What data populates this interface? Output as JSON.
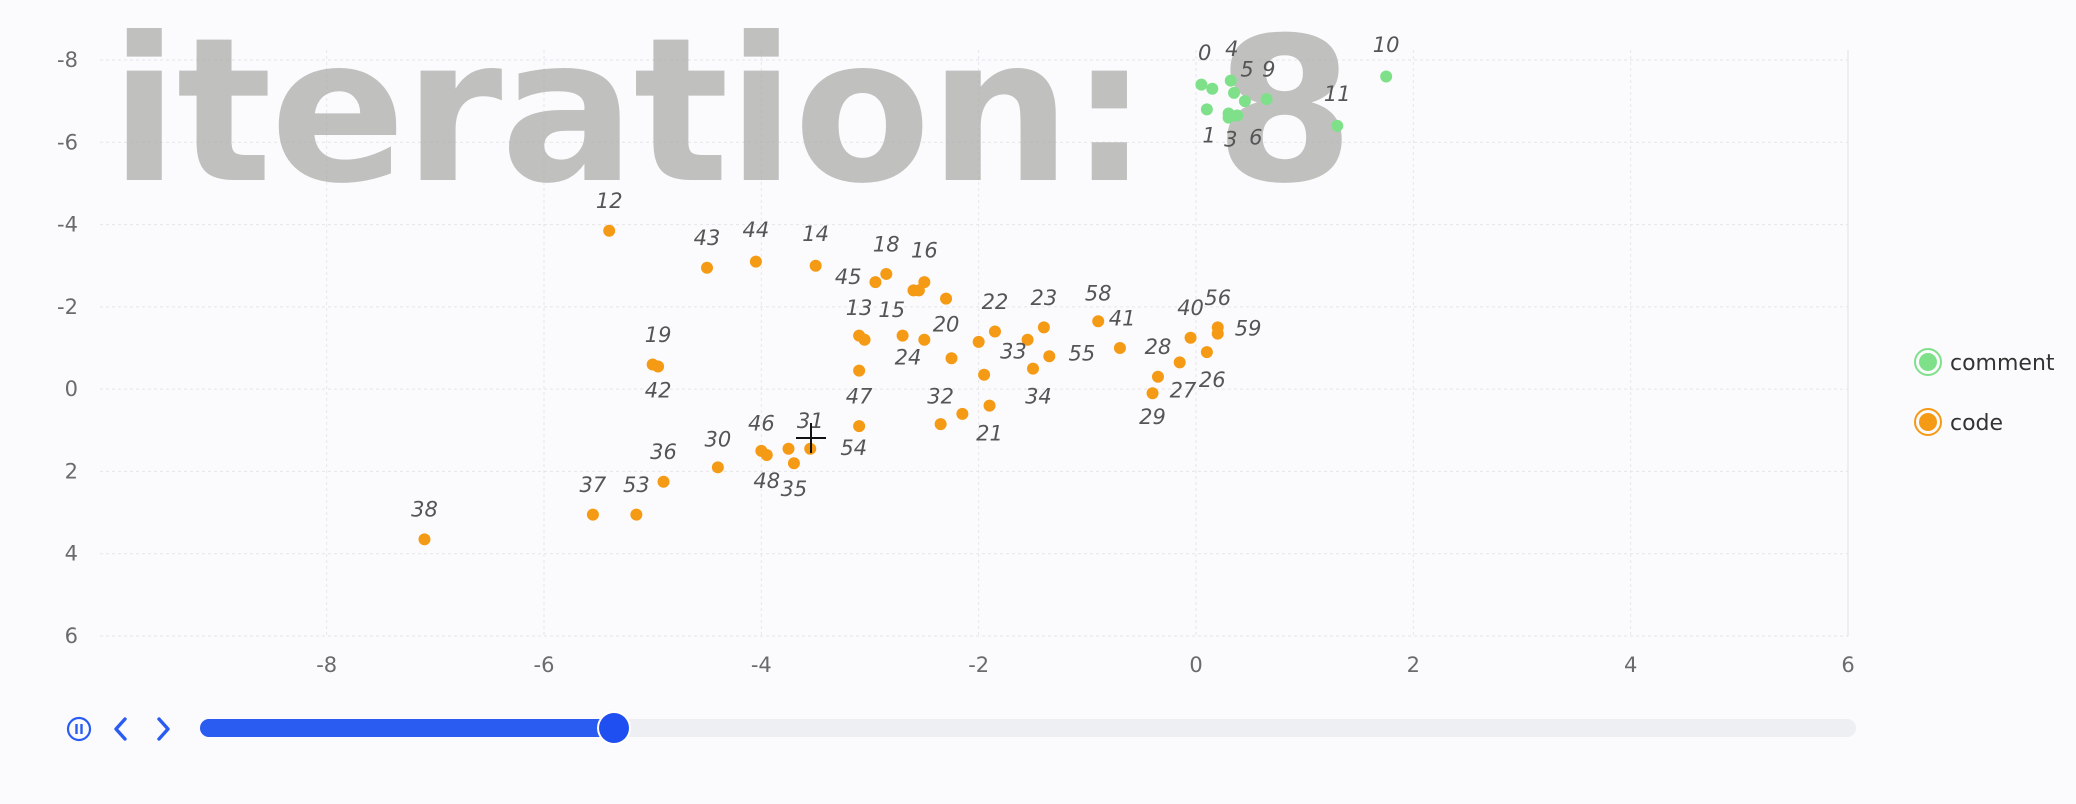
{
  "chart_data": {
    "type": "scatter",
    "iteration_label": "iteration: 8",
    "xlim": [
      -9,
      6
    ],
    "ylim": [
      -8,
      6
    ],
    "y_inverted": true,
    "x_ticks": [
      "-8",
      "-6",
      "-4",
      "-2",
      "0",
      "2",
      "4",
      "6"
    ],
    "y_ticks": [
      "-8",
      "-6",
      "-4",
      "-2",
      "0",
      "2",
      "4",
      "6"
    ],
    "grid": true,
    "legend": {
      "position": "right",
      "items": [
        {
          "name": "comment",
          "color": "#7fe08a"
        },
        {
          "name": "code",
          "color": "#f59a14"
        }
      ]
    },
    "series": [
      {
        "name": "comment",
        "color": "#7fe08a",
        "points": [
          {
            "id": "0",
            "x": 0.05,
            "y": -7.4
          },
          {
            "id": "1",
            "x": 0.1,
            "y": -6.8
          },
          {
            "id": "2",
            "x": 0.15,
            "y": -7.3
          },
          {
            "id": "3",
            "x": 0.3,
            "y": -6.7
          },
          {
            "id": "4",
            "x": 0.32,
            "y": -7.5
          },
          {
            "id": "5",
            "x": 0.35,
            "y": -7.2
          },
          {
            "id": "6",
            "x": 0.38,
            "y": -6.65
          },
          {
            "id": "7",
            "x": 0.45,
            "y": -7.0
          },
          {
            "id": "8",
            "x": 0.3,
            "y": -6.6
          },
          {
            "id": "9",
            "x": 0.65,
            "y": -7.05
          },
          {
            "id": "10",
            "x": 1.75,
            "y": -7.6
          },
          {
            "id": "11",
            "x": 1.3,
            "y": -6.4
          }
        ]
      },
      {
        "name": "code",
        "color": "#f59a14",
        "points": [
          {
            "id": "12",
            "x": -5.4,
            "y": -3.85
          },
          {
            "id": "13",
            "x": -3.1,
            "y": -1.3
          },
          {
            "id": "14",
            "x": -3.5,
            "y": -3.0
          },
          {
            "id": "15",
            "x": -3.05,
            "y": -1.2
          },
          {
            "id": "16",
            "x": -2.5,
            "y": -2.6
          },
          {
            "id": "17",
            "x": -2.6,
            "y": -2.4
          },
          {
            "id": "18",
            "x": -2.85,
            "y": -2.8
          },
          {
            "id": "19",
            "x": -5.0,
            "y": -0.6
          },
          {
            "id": "20",
            "x": -2.5,
            "y": -1.2
          },
          {
            "id": "21",
            "x": -1.9,
            "y": 0.4
          },
          {
            "id": "22",
            "x": -1.85,
            "y": -1.4
          },
          {
            "id": "23",
            "x": -1.4,
            "y": -1.5
          },
          {
            "id": "24",
            "x": -2.7,
            "y": -1.3
          },
          {
            "id": "25",
            "x": -2.3,
            "y": -2.2
          },
          {
            "id": "26",
            "x": 0.1,
            "y": -0.9
          },
          {
            "id": "27",
            "x": -0.15,
            "y": -0.65
          },
          {
            "id": "28",
            "x": -0.35,
            "y": -0.3
          },
          {
            "id": "29",
            "x": -0.4,
            "y": 0.1
          },
          {
            "id": "30",
            "x": -4.4,
            "y": 1.9
          },
          {
            "id": "31",
            "x": -3.55,
            "y": 1.45
          },
          {
            "id": "32",
            "x": -2.35,
            "y": 0.85
          },
          {
            "id": "33",
            "x": -1.55,
            "y": -1.2
          },
          {
            "id": "34",
            "x": -1.5,
            "y": -0.5
          },
          {
            "id": "35",
            "x": -3.7,
            "y": 1.8
          },
          {
            "id": "36",
            "x": -4.9,
            "y": 2.25
          },
          {
            "id": "37",
            "x": -5.55,
            "y": 3.05
          },
          {
            "id": "38",
            "x": -7.1,
            "y": 3.65
          },
          {
            "id": "39",
            "x": -2.0,
            "y": -1.15
          },
          {
            "id": "40",
            "x": -0.05,
            "y": -1.25
          },
          {
            "id": "41",
            "x": -0.7,
            "y": -1.0
          },
          {
            "id": "42",
            "x": -4.95,
            "y": -0.55
          },
          {
            "id": "43",
            "x": -4.5,
            "y": -2.95
          },
          {
            "id": "44",
            "x": -4.05,
            "y": -3.1
          },
          {
            "id": "45",
            "x": -2.95,
            "y": -2.6
          },
          {
            "id": "46",
            "x": -4.0,
            "y": 1.5
          },
          {
            "id": "47",
            "x": -3.1,
            "y": 0.9
          },
          {
            "id": "48",
            "x": -3.95,
            "y": 1.6
          },
          {
            "id": "49",
            "x": -3.1,
            "y": -0.45
          },
          {
            "id": "50",
            "x": -2.25,
            "y": -0.75
          },
          {
            "id": "51",
            "x": -1.95,
            "y": -0.35
          },
          {
            "id": "52",
            "x": -2.15,
            "y": 0.6
          },
          {
            "id": "53",
            "x": -5.15,
            "y": 3.05
          },
          {
            "id": "54",
            "x": -2.55,
            "y": -2.4
          },
          {
            "id": "55",
            "x": -1.35,
            "y": -0.8
          },
          {
            "id": "56",
            "x": 0.2,
            "y": -1.5
          },
          {
            "id": "57",
            "x": -3.75,
            "y": 1.45
          },
          {
            "id": "58",
            "x": -0.9,
            "y": -1.65
          },
          {
            "id": "59",
            "x": 0.2,
            "y": -1.35
          }
        ]
      }
    ],
    "shown_labels": [
      {
        "text": "0",
        "x": 0.08,
        "y": -8.0
      },
      {
        "text": "4",
        "x": 0.33,
        "y": -8.1
      },
      {
        "text": "5",
        "x": 0.47,
        "y": -7.6
      },
      {
        "text": "9",
        "x": 0.67,
        "y": -7.6
      },
      {
        "text": "10",
        "x": 1.75,
        "y": -8.2
      },
      {
        "text": "11",
        "x": 1.3,
        "y": -7.0
      },
      {
        "text": "1",
        "x": 0.12,
        "y": -6.0
      },
      {
        "text": "3",
        "x": 0.32,
        "y": -5.9
      },
      {
        "text": "6",
        "x": 0.55,
        "y": -5.95
      },
      {
        "text": "12",
        "x": -5.4,
        "y": -4.4
      },
      {
        "text": "43",
        "x": -4.5,
        "y": -3.5
      },
      {
        "text": "44",
        "x": -4.05,
        "y": -3.7
      },
      {
        "text": "14",
        "x": -3.5,
        "y": -3.6
      },
      {
        "text": "18",
        "x": -2.85,
        "y": -3.35
      },
      {
        "text": "16",
        "x": -2.5,
        "y": -3.2
      },
      {
        "text": "45",
        "x": -3.2,
        "y": -2.55
      },
      {
        "text": "13",
        "x": -3.1,
        "y": -1.8
      },
      {
        "text": "15",
        "x": -2.8,
        "y": -1.75
      },
      {
        "text": "22",
        "x": -1.85,
        "y": -1.95
      },
      {
        "text": "23",
        "x": -1.4,
        "y": -2.05
      },
      {
        "text": "58",
        "x": -0.9,
        "y": -2.15
      },
      {
        "text": "41",
        "x": -0.68,
        "y": -1.55
      },
      {
        "text": "40",
        "x": -0.05,
        "y": -1.8
      },
      {
        "text": "56",
        "x": 0.2,
        "y": -2.05
      },
      {
        "text": "59",
        "x": 0.48,
        "y": -1.3
      },
      {
        "text": "20",
        "x": -2.3,
        "y": -1.4
      },
      {
        "text": "19",
        "x": -4.95,
        "y": -1.15
      },
      {
        "text": "24",
        "x": -2.65,
        "y": -0.6
      },
      {
        "text": "33",
        "x": -1.68,
        "y": -0.75
      },
      {
        "text": "55",
        "x": -1.05,
        "y": -0.7
      },
      {
        "text": "28",
        "x": -0.35,
        "y": -0.85
      },
      {
        "text": "42",
        "x": -4.95,
        "y": 0.2
      },
      {
        "text": "27",
        "x": -0.12,
        "y": 0.2
      },
      {
        "text": "26",
        "x": 0.15,
        "y": -0.05
      },
      {
        "text": "34",
        "x": -1.45,
        "y": 0.35
      },
      {
        "text": "29",
        "x": -0.4,
        "y": 0.85
      },
      {
        "text": "47",
        "x": -3.1,
        "y": 0.35
      },
      {
        "text": "32",
        "x": -2.35,
        "y": 0.35
      },
      {
        "text": "21",
        "x": -1.9,
        "y": 1.25
      },
      {
        "text": "54",
        "x": -3.15,
        "y": 1.6
      },
      {
        "text": "31",
        "x": -3.55,
        "y": 0.95
      },
      {
        "text": "46",
        "x": -4.0,
        "y": 1.0
      },
      {
        "text": "30",
        "x": -4.4,
        "y": 1.4
      },
      {
        "text": "36",
        "x": -4.9,
        "y": 1.7
      },
      {
        "text": "48",
        "x": -3.95,
        "y": 2.4
      },
      {
        "text": "35",
        "x": -3.7,
        "y": 2.6
      },
      {
        "text": "37",
        "x": -5.55,
        "y": 2.5
      },
      {
        "text": "53",
        "x": -5.15,
        "y": 2.5
      },
      {
        "text": "38",
        "x": -7.1,
        "y": 3.1
      }
    ]
  },
  "timeline": {
    "progress": 0.25
  },
  "icons": {
    "pause": "pause-icon",
    "prev": "chevron-left-icon",
    "next": "chevron-right-icon",
    "crosshair": "crosshair-cursor-icon"
  },
  "colors": {
    "accent": "#2b5cf2",
    "comment": "#7fe08a",
    "code": "#f59a14"
  }
}
